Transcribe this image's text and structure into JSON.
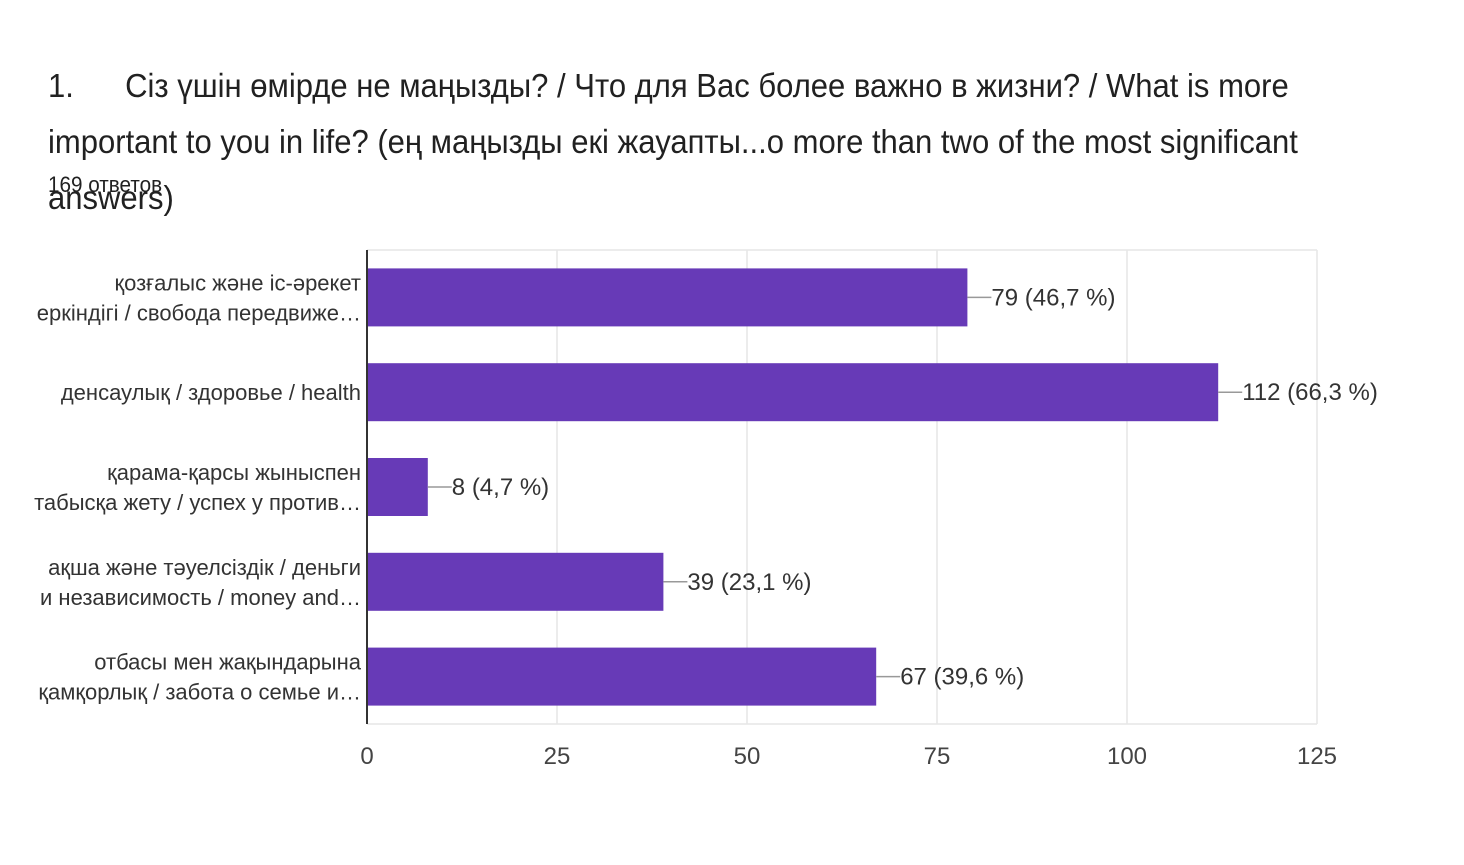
{
  "question": {
    "number": "1.",
    "text": "Сіз үшін өмірде не маңызды? / Что для Вас более важно в жизни? / What is more important to you in life? (ең маңызды екі жауапты...o more than two of the most significant answers)",
    "responses": "169 ответов"
  },
  "colors": {
    "bar": "#673ab7",
    "grid": "#e6e6e6",
    "axis": "#333333",
    "leader": "#999999"
  },
  "chart_data": {
    "type": "bar",
    "orientation": "horizontal",
    "categories": [
      [
        "қозғалыс және іс-әрекет",
        "еркіндігі / свобода передвиже…"
      ],
      [
        "денсаулық / здоровье / health"
      ],
      [
        "қарама-қарсы жыныспен",
        "табысқа жету / успех у против…"
      ],
      [
        "ақша және тәуелсіздік / деньги",
        "и независимость / money and…"
      ],
      [
        "отбасы мен жақындарына",
        "қамқорлық / забота о семье и…"
      ]
    ],
    "values": [
      79,
      112,
      8,
      39,
      67
    ],
    "value_labels": [
      "79 (46,7 %)",
      "112 (66,3 %)",
      "8 (4,7 %)",
      "39 (23,1 %)",
      "67 (39,6 %)"
    ],
    "xlim": [
      0,
      125
    ],
    "xticks": [
      "0",
      "25",
      "50",
      "75",
      "100",
      "125"
    ],
    "grid": true
  }
}
